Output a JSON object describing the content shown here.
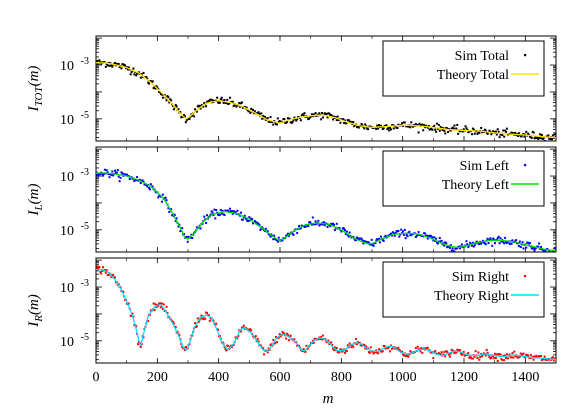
{
  "chart_data": [
    {
      "type": "line",
      "ylabel": "I_TOT(m)",
      "ylabel_main": "I",
      "ylabel_sub": "TOT",
      "ylabel_suffix": "(m)",
      "yscale": "log",
      "ylim": [
        1.5e-06,
        0.012
      ],
      "xlim": [
        0,
        1500
      ],
      "yticks": [
        {
          "value": 0.001,
          "label": "10",
          "exp": "-3"
        },
        {
          "value": 1e-05,
          "label": "10",
          "exp": "-5"
        }
      ],
      "legend_position": "top-right",
      "series": [
        {
          "name": "Sim Total",
          "kind": "points",
          "color": "#000000"
        },
        {
          "name": "Theory Total",
          "kind": "line",
          "color": "#ffe000"
        }
      ],
      "theory_curve": {
        "x": [
          0,
          30,
          60,
          100,
          140,
          180,
          220,
          260,
          285,
          295,
          305,
          330,
          360,
          400,
          440,
          480,
          520,
          560,
          600,
          620,
          660,
          700,
          740,
          780,
          820,
          860,
          900,
          950,
          1000,
          1050,
          1100,
          1150,
          1200,
          1250,
          1300,
          1350,
          1400,
          1450,
          1500
        ],
        "y": [
          0.0012,
          0.0012,
          0.00105,
          0.0008,
          0.0005,
          0.00022,
          8e-05,
          2.5e-05,
          1.2e-05,
          1e-05,
          1.2e-05,
          2.2e-05,
          3.8e-05,
          4.8e-05,
          4e-05,
          2.8e-05,
          1.6e-05,
          9e-06,
          7e-06,
          8.5e-06,
          1.1e-05,
          1.3e-05,
          1.4e-05,
          1.1e-05,
          7.5e-06,
          5.5e-06,
          4.8e-06,
          5.2e-06,
          5.8e-06,
          5.5e-06,
          4.8e-06,
          4e-06,
          3.7e-06,
          3.5e-06,
          3e-06,
          2.7e-06,
          2.5e-06,
          2.2e-06,
          2e-06
        ]
      }
    },
    {
      "type": "line",
      "ylabel": "I_L(m)",
      "ylabel_main": "I",
      "ylabel_sub": "L",
      "ylabel_suffix": "(m)",
      "yscale": "log",
      "ylim": [
        1.5e-06,
        0.012
      ],
      "xlim": [
        0,
        1500
      ],
      "yticks": [
        {
          "value": 0.001,
          "label": "10",
          "exp": "-3"
        },
        {
          "value": 1e-05,
          "label": "10",
          "exp": "-5"
        }
      ],
      "legend_position": "top-right",
      "series": [
        {
          "name": "Sim Left",
          "kind": "points",
          "color": "#0000ff"
        },
        {
          "name": "Theory Left",
          "kind": "line",
          "color": "#00e000"
        }
      ],
      "theory_curve": {
        "x": [
          0,
          30,
          60,
          100,
          140,
          180,
          220,
          250,
          275,
          290,
          300,
          320,
          350,
          380,
          420,
          460,
          500,
          540,
          570,
          590,
          600,
          615,
          640,
          680,
          720,
          760,
          800,
          840,
          870,
          890,
          905,
          930,
          970,
          1010,
          1050,
          1090,
          1130,
          1160,
          1180,
          1200,
          1240,
          1280,
          1320,
          1360,
          1400,
          1440,
          1470,
          1500
        ],
        "y": [
          0.0013,
          0.0013,
          0.0012,
          0.001,
          0.0007,
          0.0004,
          0.00015,
          4e-05,
          1.2e-05,
          5e-06,
          4.5e-06,
          7.5e-06,
          2e-05,
          3.8e-05,
          4.8e-05,
          4e-05,
          2.5e-05,
          1.2e-05,
          6.5e-06,
          4.5e-06,
          4e-06,
          4.8e-06,
          8.5e-06,
          1.5e-05,
          1.8e-05,
          1.6e-05,
          1e-05,
          5e-06,
          3.5e-06,
          3e-06,
          3.2e-06,
          4.5e-06,
          6.8e-06,
          7.5e-06,
          7e-06,
          5e-06,
          3e-06,
          2.4e-06,
          2.2e-06,
          2.4e-06,
          3.3e-06,
          4e-06,
          4.1e-06,
          3.6e-06,
          2.8e-06,
          2.2e-06,
          1.8e-06,
          1.7e-06
        ]
      }
    },
    {
      "type": "line",
      "ylabel": "I_R(m)",
      "ylabel_main": "I",
      "ylabel_sub": "R",
      "ylabel_suffix": "(m)",
      "yscale": "log",
      "ylim": [
        1.5e-06,
        0.012
      ],
      "xlim": [
        0,
        1500
      ],
      "yticks": [
        {
          "value": 0.001,
          "label": "10",
          "exp": "-3"
        },
        {
          "value": 1e-05,
          "label": "10",
          "exp": "-5"
        }
      ],
      "legend_position": "top-right",
      "series": [
        {
          "name": "Sim Right",
          "kind": "points",
          "color": "#ff0000"
        },
        {
          "name": "Theory Right",
          "kind": "line",
          "color": "#00e0ff"
        }
      ],
      "theory_curve": {
        "x": [
          0,
          20,
          40,
          60,
          80,
          100,
          120,
          135,
          145,
          155,
          170,
          190,
          205,
          215,
          230,
          250,
          270,
          285,
          295,
          305,
          320,
          340,
          360,
          375,
          385,
          395,
          410,
          430,
          450,
          470,
          480,
          490,
          505,
          525,
          545,
          560,
          575,
          585,
          600,
          615,
          635,
          655,
          670,
          680,
          690,
          710,
          730,
          750,
          765,
          775,
          790,
          810,
          830,
          850,
          865,
          880,
          900,
          920,
          940,
          960,
          975,
          990,
          1010,
          1030,
          1050,
          1070,
          1090,
          1110,
          1130,
          1150,
          1170,
          1190,
          1210,
          1240,
          1270,
          1300,
          1330,
          1360,
          1390,
          1420,
          1450,
          1480,
          1500
        ],
        "y": [
          0.0045,
          0.0044,
          0.0035,
          0.002,
          0.0009,
          0.0003,
          8e-05,
          1.8e-05,
          6e-06,
          1.8e-05,
          8e-05,
          0.00018,
          0.00022,
          0.0002,
          0.00011,
          4.5e-05,
          1.5e-05,
          5.5e-06,
          4.5e-06,
          8e-06,
          3e-05,
          7.5e-05,
          9e-05,
          7.5e-05,
          4.5e-05,
          2.5e-05,
          9e-06,
          4.5e-06,
          8e-06,
          2.5e-05,
          3e-05,
          2.8e-05,
          2e-05,
          1e-05,
          4.5e-06,
          4e-06,
          7e-06,
          1.1e-05,
          1.6e-05,
          1.7e-05,
          1.3e-05,
          8e-06,
          4.5e-06,
          4.2e-06,
          5.5e-06,
          1e-05,
          1.3e-05,
          1.1e-05,
          7.5e-06,
          5.5e-06,
          4.2e-06,
          4.5e-06,
          7e-06,
          8.5e-06,
          7.5e-06,
          5.5e-06,
          4.2e-06,
          4e-06,
          5.5e-06,
          6.5e-06,
          5.5e-06,
          4e-06,
          3.2e-06,
          3.5e-06,
          4.5e-06,
          5e-06,
          4.2e-06,
          3.2e-06,
          2.8e-06,
          3.5e-06,
          4.2e-06,
          3.8e-06,
          3e-06,
          2.8e-06,
          3.3e-06,
          2.8e-06,
          2.6e-06,
          3e-06,
          2.7e-06,
          2.4e-06,
          2.3e-06,
          2.1e-06,
          2e-06
        ]
      }
    }
  ],
  "shared_x_axis": {
    "label": "m",
    "ticks": [
      0,
      200,
      400,
      600,
      800,
      1000,
      1200,
      1400
    ]
  }
}
